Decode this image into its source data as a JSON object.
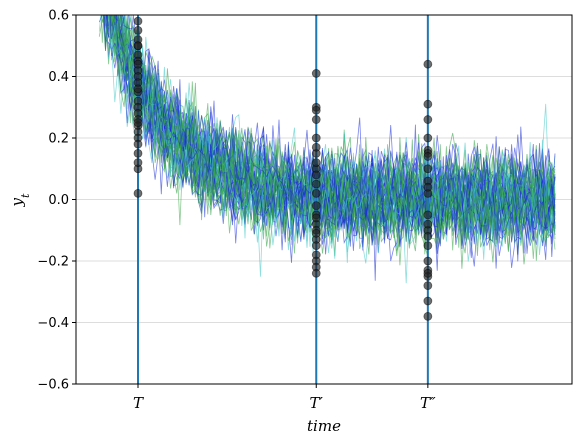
{
  "chart_data": {
    "type": "line",
    "title": "",
    "xlabel": "time",
    "ylabel": "y_t",
    "ylim": [
      -0.6,
      0.6
    ],
    "yticks": [
      -0.6,
      -0.4,
      -0.2,
      0.0,
      0.2,
      0.4,
      0.6
    ],
    "ytick_labels": [
      "−0.6",
      "−0.4",
      "−0.2",
      "0.0",
      "0.2",
      "0.4",
      "0.6"
    ],
    "xlim": [
      -20,
      300
    ],
    "x_end": 290,
    "grid": "horizontal",
    "legend": "none",
    "n_paths": 60,
    "path_model": "stochastic sample paths decaying toward 0 with noise",
    "path_colors": [
      "#2233dd",
      "#3da84a",
      "#45c8c8",
      "#1a2fd0",
      "#2e9e44"
    ],
    "marker_color": "#222222",
    "vline_color": "#1f77b4",
    "vertical_lines": [
      {
        "x": 20,
        "label": "T",
        "samples": [
          0.58,
          0.55,
          0.52,
          0.5,
          0.47,
          0.45,
          0.42,
          0.4,
          0.38,
          0.35,
          0.32,
          0.3,
          0.28,
          0.26,
          0.24,
          0.22,
          0.2,
          0.18,
          0.15,
          0.1,
          0.02,
          0.12,
          0.25,
          0.36,
          0.44,
          0.5
        ]
      },
      {
        "x": 135,
        "label": "T′",
        "samples": [
          0.41,
          0.3,
          0.29,
          0.26,
          0.2,
          0.15,
          0.1,
          0.05,
          0.02,
          -0.02,
          -0.05,
          -0.08,
          -0.1,
          -0.13,
          -0.15,
          -0.18,
          -0.2,
          -0.22,
          -0.24,
          0.17,
          0.08,
          -0.11,
          0.12,
          -0.06
        ]
      },
      {
        "x": 207,
        "label": "T″",
        "samples": [
          0.44,
          0.31,
          0.26,
          0.2,
          0.16,
          0.15,
          0.1,
          0.06,
          0.02,
          -0.05,
          -0.1,
          -0.12,
          -0.15,
          -0.2,
          -0.23,
          -0.25,
          -0.28,
          -0.33,
          -0.38,
          0.14,
          -0.08,
          0.04,
          -0.24
        ]
      }
    ]
  }
}
